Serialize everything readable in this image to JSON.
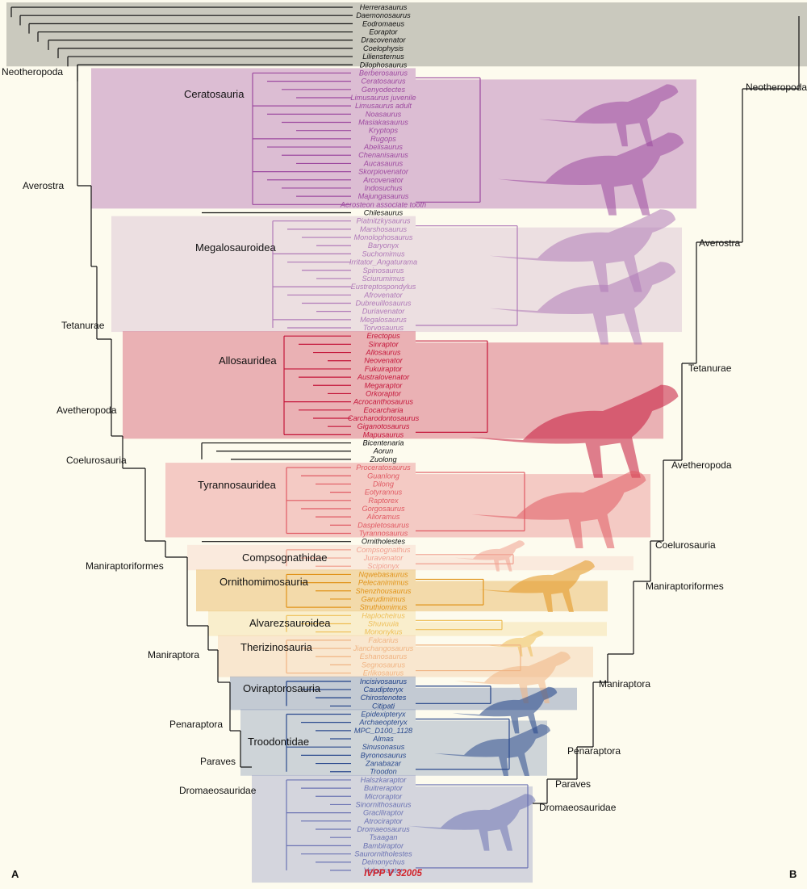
{
  "panel_labels": {
    "left": "A",
    "right": "B"
  },
  "colors": {
    "outgroup": "#111111",
    "outgroup_band": "#c7c6bb",
    "ceratosauria": "#9d4aa0",
    "megalosauroidea": "#b07ab8",
    "allosauroidea": "#c4163a",
    "tyrannosauroidea": "#e05a63",
    "compsognathidae": "#f0a090",
    "ornithomimosauria": "#e1941b",
    "alvarezsauroidea": "#eebe56",
    "therizinosauria": "#f0b483",
    "oviraptorosauria": "#1e3f86",
    "troodontidae": "#2b4a8e",
    "dromaeosauridae": "#6b73b3",
    "new_specimen": "#d2232a"
  },
  "tree_a": {
    "outgroup_taxa": [
      "Herrerasaurus",
      "Daemonosaurus",
      "Eodromaeus",
      "Eoraptor",
      "Dracovenator",
      "Coelophysis",
      "Liliensternus",
      "Dilophosaurus"
    ],
    "groups": [
      {
        "key": "ceratosauria",
        "label": "Ceratosauria",
        "taxa": [
          "Berberosaurus",
          "Ceratosaurus",
          "Genyodectes",
          "Limusaurus juvenile",
          "Limusaurus adult",
          "Noasaurus",
          "Masiakasaurus",
          "Kryptops",
          "Rugops",
          "Abelisaurus",
          "Chenanisaurus",
          "Aucasaurus",
          "Skorpiovenator",
          "Arcovenator",
          "Indosuchus",
          "Majungasaurus",
          "Aerosteon associate tooth"
        ]
      },
      {
        "key": "outgroup",
        "label": "",
        "taxa": [
          "Chilesaurus"
        ]
      },
      {
        "key": "megalosauroidea",
        "label": "Megalosauroidea",
        "taxa": [
          "Piatnitzkysaurus",
          "Marshosaurus",
          "Monolophosaurus",
          "Baryonyx",
          "Suchomimus",
          "Irritator_Angaturama",
          "Spinosaurus",
          "Sciurumimus",
          "Eustreptospondylus",
          "Afrovenator",
          "Dubreuillosaurus",
          "Duriavenator",
          "Megalosaurus",
          "Torvosaurus"
        ]
      },
      {
        "key": "allosauroidea",
        "label": "Allosauridea",
        "taxa": [
          "Erectopus",
          "Sinraptor",
          "Allosaurus",
          "Neovenator",
          "Fukuiraptor",
          "Australovenator",
          "Megaraptor",
          "Orkoraptor",
          "Acrocanthosaurus",
          "Eocarcharia",
          "Carcharodontosaurus",
          "Giganotosaurus",
          "Mapusaurus"
        ]
      },
      {
        "key": "outgroup",
        "label": "",
        "taxa": [
          "Bicentenaria",
          "Aorun",
          "Zuolong"
        ]
      },
      {
        "key": "tyrannosauroidea",
        "label": "Tyrannosauridea",
        "taxa": [
          "Proceratosaurus",
          "Guanlong",
          "Dilong",
          "Eotyrannus",
          "Raptorex",
          "Gorgosaurus",
          "Alioramus",
          "Daspletosaurus",
          "Tyrannosaurus"
        ]
      },
      {
        "key": "outgroup",
        "label": "",
        "taxa": [
          "Ornitholestes"
        ]
      },
      {
        "key": "compsognathidae",
        "label": "Compsognathidae",
        "taxa": [
          "Compsognathus",
          "Juravenator",
          "Scipionyx"
        ]
      },
      {
        "key": "ornithomimosauria",
        "label": "Ornithomimosauria",
        "taxa": [
          "Nqwebasaurus",
          "Pelecanimimus",
          "Shenzhousaurus",
          "Garudimimus",
          "Struthiomimus"
        ]
      },
      {
        "key": "alvarezsauroidea",
        "label": "Alvarezsauroidea",
        "taxa": [
          "Haplocheirus",
          "Shuvuuia",
          "Mononykus"
        ]
      },
      {
        "key": "therizinosauria",
        "label": "Therizinosauria",
        "taxa": [
          "Falcarius",
          "Jianchangosaurus",
          "Eshanosaurus",
          "Segnosaurus",
          "Erlikosaurus"
        ]
      },
      {
        "key": "oviraptorosauria",
        "label": "Oviraptorosauria",
        "taxa": [
          "Incisivosaurus",
          "Caudipteryx",
          "Chirostenotes",
          "Citipati"
        ]
      },
      {
        "key": "troodontidae",
        "label": "Troodontidae",
        "taxa": [
          "Epidexipteryx",
          "Archaeopteryx",
          "MPC_D100_1128",
          "Almas",
          "Sinusonasus",
          "Byronosaurus",
          "Zanabazar",
          "Troodon"
        ]
      },
      {
        "key": "dromaeosauridae",
        "label": "Dromaeosauridae",
        "taxa": [
          "Halszkaraptor",
          "Buitreraptor",
          "Microraptor",
          "Sinornithosaurus",
          "Graciliraptor",
          "Atrociraptor",
          "Dromaeosaurus",
          "Tsaagan",
          "Bambiraptor",
          "Saurornitholestes",
          "Deinonychus",
          "Velociraptor"
        ]
      }
    ],
    "new_specimen": "IVPP V 32005",
    "node_labels": [
      "Neotheropoda",
      "Averostra",
      "Tetanurae",
      "Avetheropoda",
      "Coelurosauria",
      "Maniraptoriformes",
      "Maniraptora",
      "Penaraptora",
      "Paraves",
      "Dromaeosauridae"
    ]
  },
  "tree_b": {
    "node_labels": [
      "Neotheropoda",
      "Averostra",
      "Tetanurae",
      "Avetheropoda",
      "Coelurosauria",
      "Maniraptoriformes",
      "Maniraptora",
      "Penaraptora",
      "Paraves",
      "Dromaeosauridae"
    ]
  }
}
